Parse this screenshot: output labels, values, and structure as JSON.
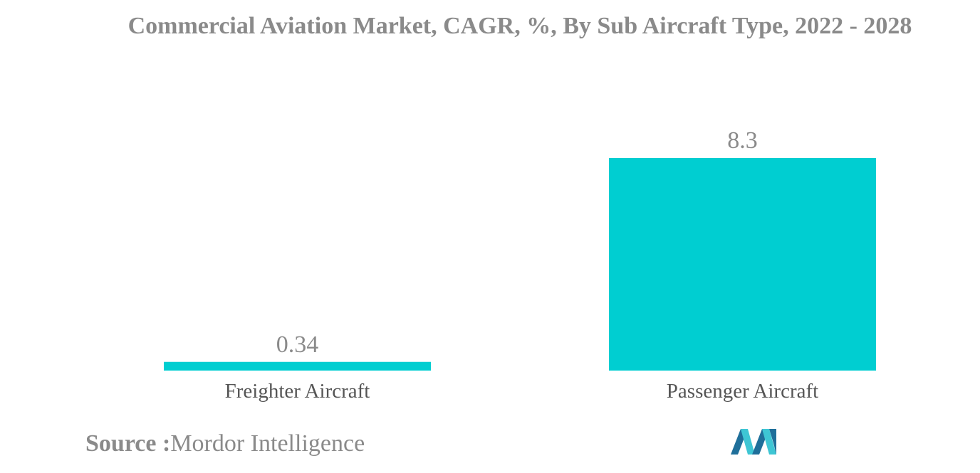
{
  "chart_data": {
    "type": "bar",
    "title": "Commercial Aviation Market, CAGR, %, By Sub Aircraft Type, 2022 - 2028",
    "categories": [
      "Freighter Aircraft",
      "Passenger Aircraft"
    ],
    "values": [
      0.34,
      8.3
    ],
    "value_labels": [
      "0.34",
      "8.3"
    ],
    "xlabel": "",
    "ylabel": "",
    "ylim": [
      0,
      8.3
    ],
    "grid": false,
    "legend": "none",
    "bar_color": "#00ced1"
  },
  "footer": {
    "source_label": "Source :",
    "source_name": "Mordor Intelligence"
  },
  "colors": {
    "text": "#8a8a8a",
    "label": "#555555",
    "logo_dark": "#1f6f9a",
    "logo_light": "#3ec6d4"
  },
  "logo": {
    "icon": "mordor-intelligence-logo"
  }
}
